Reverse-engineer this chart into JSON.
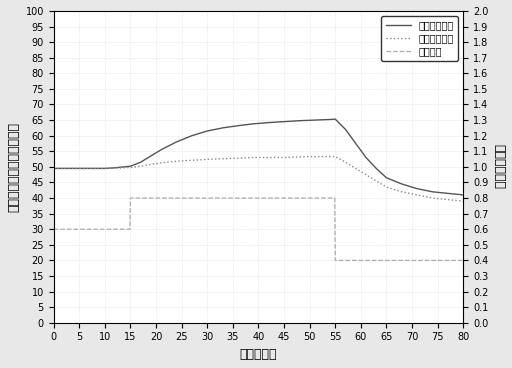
{
  "title": "",
  "xlabel": "时间（分）",
  "ylabel_left": "变压器绕组温度（摄氏度）",
  "ylabel_right": "变器负载系数",
  "xlim": [
    0,
    80
  ],
  "ylim_left": [
    0,
    100
  ],
  "ylim_right": [
    0.0,
    2.0
  ],
  "xticks": [
    0,
    5,
    10,
    15,
    20,
    25,
    30,
    35,
    40,
    45,
    50,
    55,
    60,
    65,
    70,
    75,
    80
  ],
  "yticks_left": [
    0,
    5,
    10,
    15,
    20,
    25,
    30,
    35,
    40,
    45,
    50,
    55,
    60,
    65,
    70,
    75,
    80,
    85,
    90,
    95,
    100
  ],
  "yticks_right": [
    0.0,
    0.1,
    0.2,
    0.3,
    0.4,
    0.5,
    0.6,
    0.7,
    0.8,
    0.9,
    1.0,
    1.1,
    1.2,
    1.3,
    1.4,
    1.5,
    1.6,
    1.7,
    1.8,
    1.9,
    2.0
  ],
  "legend_labels": [
    "传统控制方式",
    "新的控制方式",
    "负载系数"
  ],
  "line1_color": "#555555",
  "line2_color": "#888888",
  "line3_color": "#aaaaaa",
  "line1_style": "solid",
  "line2_style": "dotted",
  "line3_style": "dashed",
  "line1_x": [
    0,
    5,
    10,
    12,
    15,
    17,
    19,
    21,
    24,
    27,
    30,
    33,
    36,
    39,
    42,
    45,
    48,
    51,
    54,
    55,
    57,
    59,
    61,
    63,
    65,
    68,
    71,
    74,
    77,
    80
  ],
  "line1_y": [
    49.5,
    49.5,
    49.5,
    49.7,
    50.2,
    51.5,
    53.5,
    55.5,
    58.0,
    60.0,
    61.5,
    62.5,
    63.2,
    63.8,
    64.2,
    64.5,
    64.8,
    65.0,
    65.2,
    65.3,
    62.0,
    57.5,
    53.0,
    49.5,
    46.5,
    44.5,
    43.0,
    42.0,
    41.5,
    41.0
  ],
  "line2_x": [
    0,
    5,
    10,
    12,
    15,
    17,
    19,
    21,
    24,
    27,
    30,
    33,
    36,
    39,
    42,
    45,
    48,
    51,
    54,
    55,
    57,
    59,
    61,
    63,
    65,
    68,
    71,
    74,
    77,
    80
  ],
  "line2_y": [
    49.5,
    49.5,
    49.5,
    49.6,
    49.8,
    50.2,
    50.8,
    51.3,
    51.8,
    52.1,
    52.4,
    52.6,
    52.8,
    53.0,
    53.0,
    53.0,
    53.2,
    53.3,
    53.3,
    53.3,
    51.5,
    49.5,
    47.5,
    45.5,
    43.5,
    42.0,
    41.0,
    40.0,
    39.5,
    39.0
  ],
  "line3_x": [
    0,
    14.9,
    15.0,
    54.9,
    55.0,
    80
  ],
  "line3_y": [
    0.6,
    0.6,
    0.8,
    0.8,
    0.4,
    0.4
  ],
  "background_color": "#e8e8e8",
  "plot_bg_color": "#ffffff",
  "grid_color": "#cccccc",
  "font_size": 9,
  "tick_font_size": 7
}
